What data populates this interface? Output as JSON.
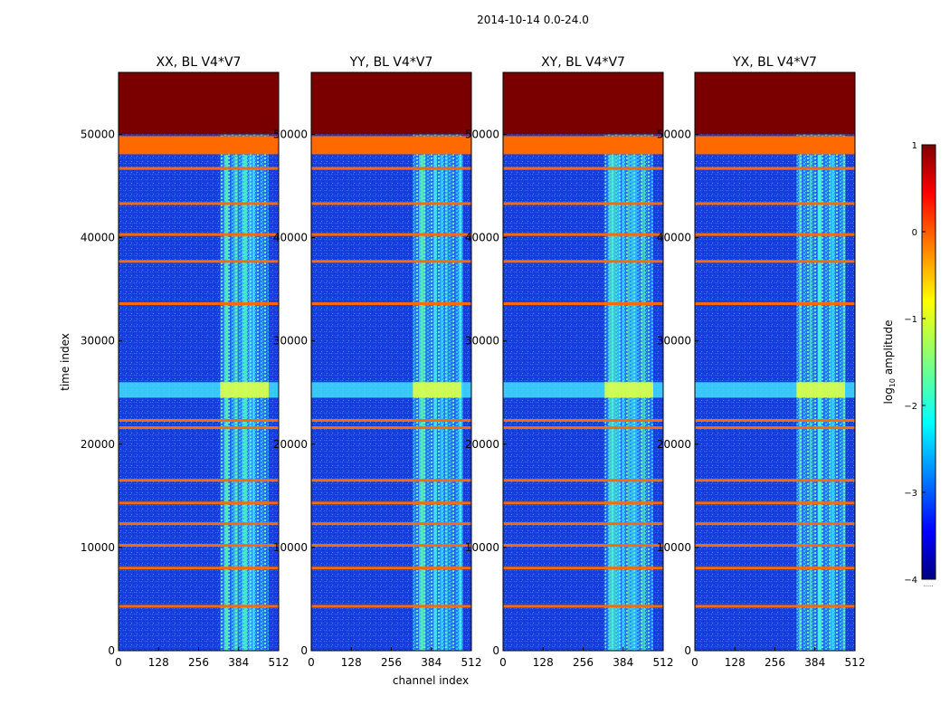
{
  "chart_data": {
    "type": "heatmap",
    "suptitle": "2014-10-14 0.0-24.0",
    "xlabel": "channel index",
    "ylabel": "time index",
    "xlim": [
      0,
      512
    ],
    "ylim": [
      0,
      56000
    ],
    "xticks": [
      "0",
      "128",
      "256",
      "384",
      "512"
    ],
    "yticks": [
      "0",
      "10000",
      "20000",
      "30000",
      "40000",
      "50000"
    ],
    "panels": [
      {
        "title": "XX, BL V4*V7"
      },
      {
        "title": "YY, BL V4*V7"
      },
      {
        "title": "XY, BL V4*V7"
      },
      {
        "title": "YX, BL V4*V7"
      }
    ],
    "flagged_rows": [
      4300,
      8000,
      10200,
      12300,
      14300,
      16500,
      21600,
      22300,
      33600,
      37700,
      40300,
      43300,
      46700,
      49000
    ],
    "saturated_above": 50000,
    "active_channel_range": [
      325,
      480
    ],
    "bright_time_band": [
      24500,
      26000
    ],
    "colorbar": {
      "label": "log10 amplitude",
      "ticks": [
        "1",
        "0",
        "−1",
        "−2",
        "−3",
        "−4"
      ],
      "range": [
        -4,
        1
      ],
      "footnote": "......"
    }
  }
}
